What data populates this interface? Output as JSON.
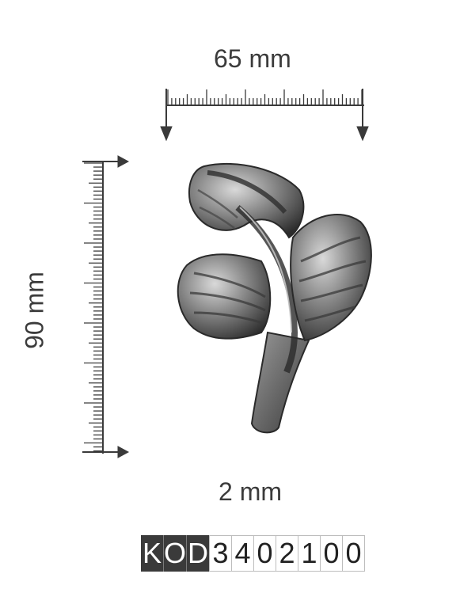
{
  "dimensions": {
    "width_label": "65 mm",
    "height_label": "90 mm",
    "thickness_label": "2 mm"
  },
  "product_code": {
    "prefix": [
      "K",
      "O",
      "D"
    ],
    "number": [
      "3",
      "4",
      "0",
      "2",
      "1",
      "0",
      "0"
    ]
  },
  "colors": {
    "ink": "#3a3a3a",
    "metal_dark": "#2e2e2e",
    "metal_mid": "#7b7b7b",
    "metal_light": "#cfcfcf"
  }
}
